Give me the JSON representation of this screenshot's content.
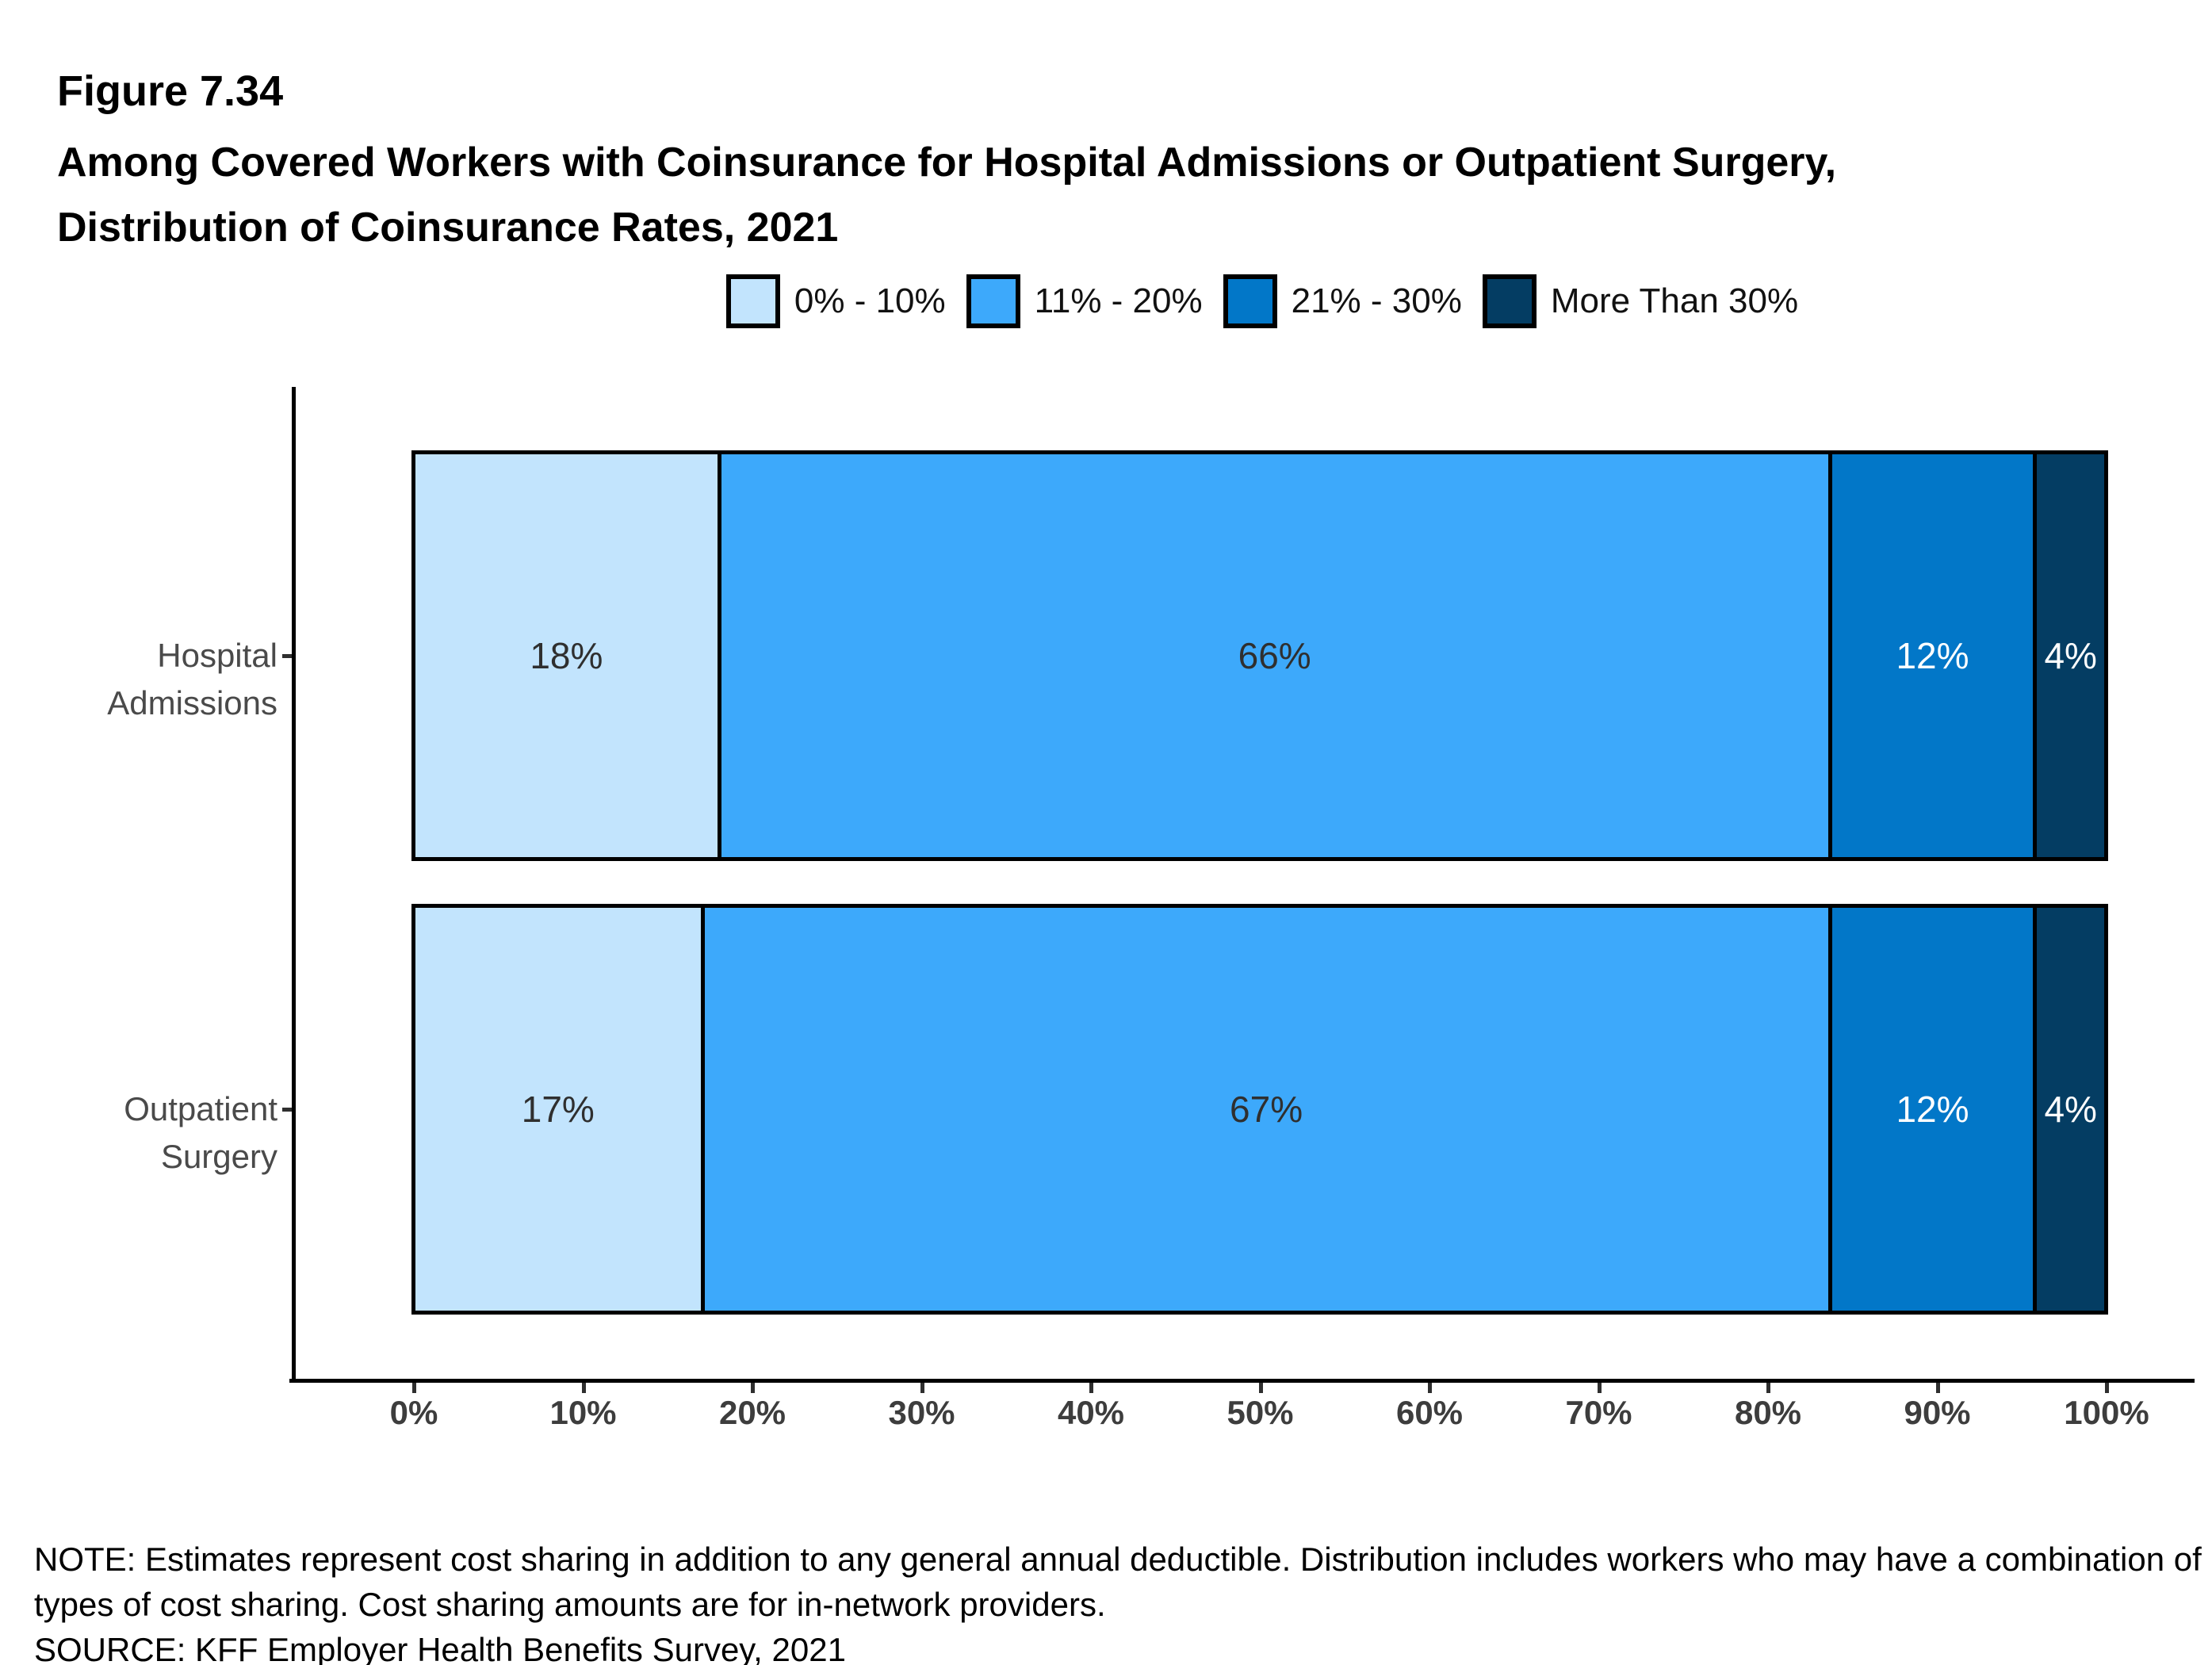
{
  "header": {
    "figure_label": "Figure 7.34",
    "title_line1": "Among Covered Workers with Coinsurance for Hospital Admissions or Outpatient Surgery,",
    "title_line2": "Distribution of Coinsurance Rates, 2021"
  },
  "chart_data": {
    "type": "bar",
    "orientation": "horizontal",
    "stacked": true,
    "title": "Among Covered Workers with Coinsurance for Hospital Admissions or Outpatient Surgery, Distribution of Coinsurance Rates, 2021",
    "categories": [
      "Hospital Admissions",
      "Outpatient Surgery"
    ],
    "series": [
      {
        "name": "0% - 10%",
        "color": "#C2E4FD",
        "label_color": "#2f2f2f",
        "values": [
          18,
          17
        ]
      },
      {
        "name": "11% - 20%",
        "color": "#3DA9FB",
        "label_color": "#2f2f2f",
        "values": [
          66,
          67
        ]
      },
      {
        "name": "21% - 30%",
        "color": "#0277C8",
        "label_color": "#ffffff",
        "values": [
          12,
          12
        ]
      },
      {
        "name": "More Than 30%",
        "color": "#043D63",
        "label_color": "#ffffff",
        "values": [
          4,
          4
        ]
      }
    ],
    "value_suffix": "%",
    "x_ticks": [
      "0%",
      "10%",
      "20%",
      "30%",
      "40%",
      "50%",
      "60%",
      "70%",
      "80%",
      "90%",
      "100%"
    ],
    "xlim": [
      0,
      100
    ],
    "legend_position": "top",
    "grid": false
  },
  "footer": {
    "note_line1": "NOTE: Estimates represent cost sharing in addition to any general annual deductible. Distribution includes workers who may have a combination of",
    "note_line2": "types of cost sharing. Cost sharing amounts are for in-network providers.",
    "source": "SOURCE: KFF Employer Health Benefits Survey, 2021"
  }
}
